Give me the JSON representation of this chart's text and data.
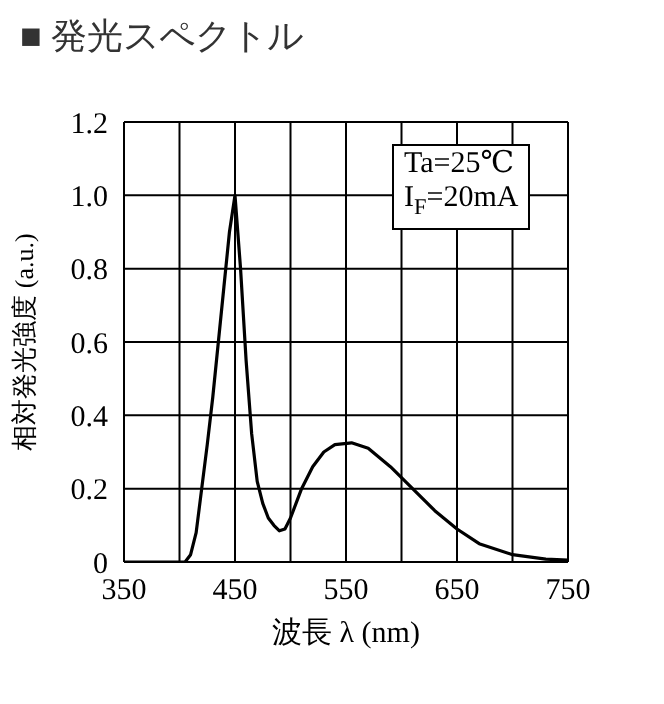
{
  "chart_data": {
    "type": "line",
    "title": "■ 発光スペクトル",
    "xlabel": "波長 λ (nm)",
    "ylabel": "相対発光強度 (a.u.)",
    "annotations": [
      "Ta=25℃",
      "I$_{F}$=20mA"
    ],
    "series": [
      {
        "color": "#000000",
        "x": [
          350,
          370,
          390,
          405,
          410,
          415,
          420,
          425,
          430,
          435,
          440,
          445,
          450,
          455,
          460,
          465,
          470,
          475,
          480,
          485,
          490,
          495,
          500,
          510,
          520,
          530,
          540,
          555,
          570,
          590,
          610,
          630,
          650,
          670,
          700,
          730,
          750
        ],
        "values": [
          0,
          0,
          0,
          0,
          0.02,
          0.08,
          0.2,
          0.32,
          0.45,
          0.6,
          0.75,
          0.9,
          1,
          0.8,
          0.55,
          0.35,
          0.22,
          0.16,
          0.12,
          0.1,
          0.085,
          0.09,
          0.12,
          0.2,
          0.26,
          0.3,
          0.32,
          0.325,
          0.31,
          0.26,
          0.2,
          0.14,
          0.09,
          0.05,
          0.02,
          0.008,
          0.005
        ]
      }
    ],
    "xlim": [
      350,
      750
    ],
    "xticks": [
      350,
      {
        "value": 400,
        "label": null
      },
      450,
      {
        "value": 500,
        "label": null
      },
      550,
      {
        "value": 600,
        "label": null
      },
      650,
      {
        "value": 700,
        "label": null
      },
      750
    ],
    "ylim": [
      0,
      1.2
    ],
    "yticks": [
      0,
      0.2,
      0.4,
      0.6,
      0.8,
      {
        "value": 1,
        "label": "1.0"
      },
      1.2
    ],
    "grid": true,
    "marker": "none",
    "line_style": "solid"
  }
}
